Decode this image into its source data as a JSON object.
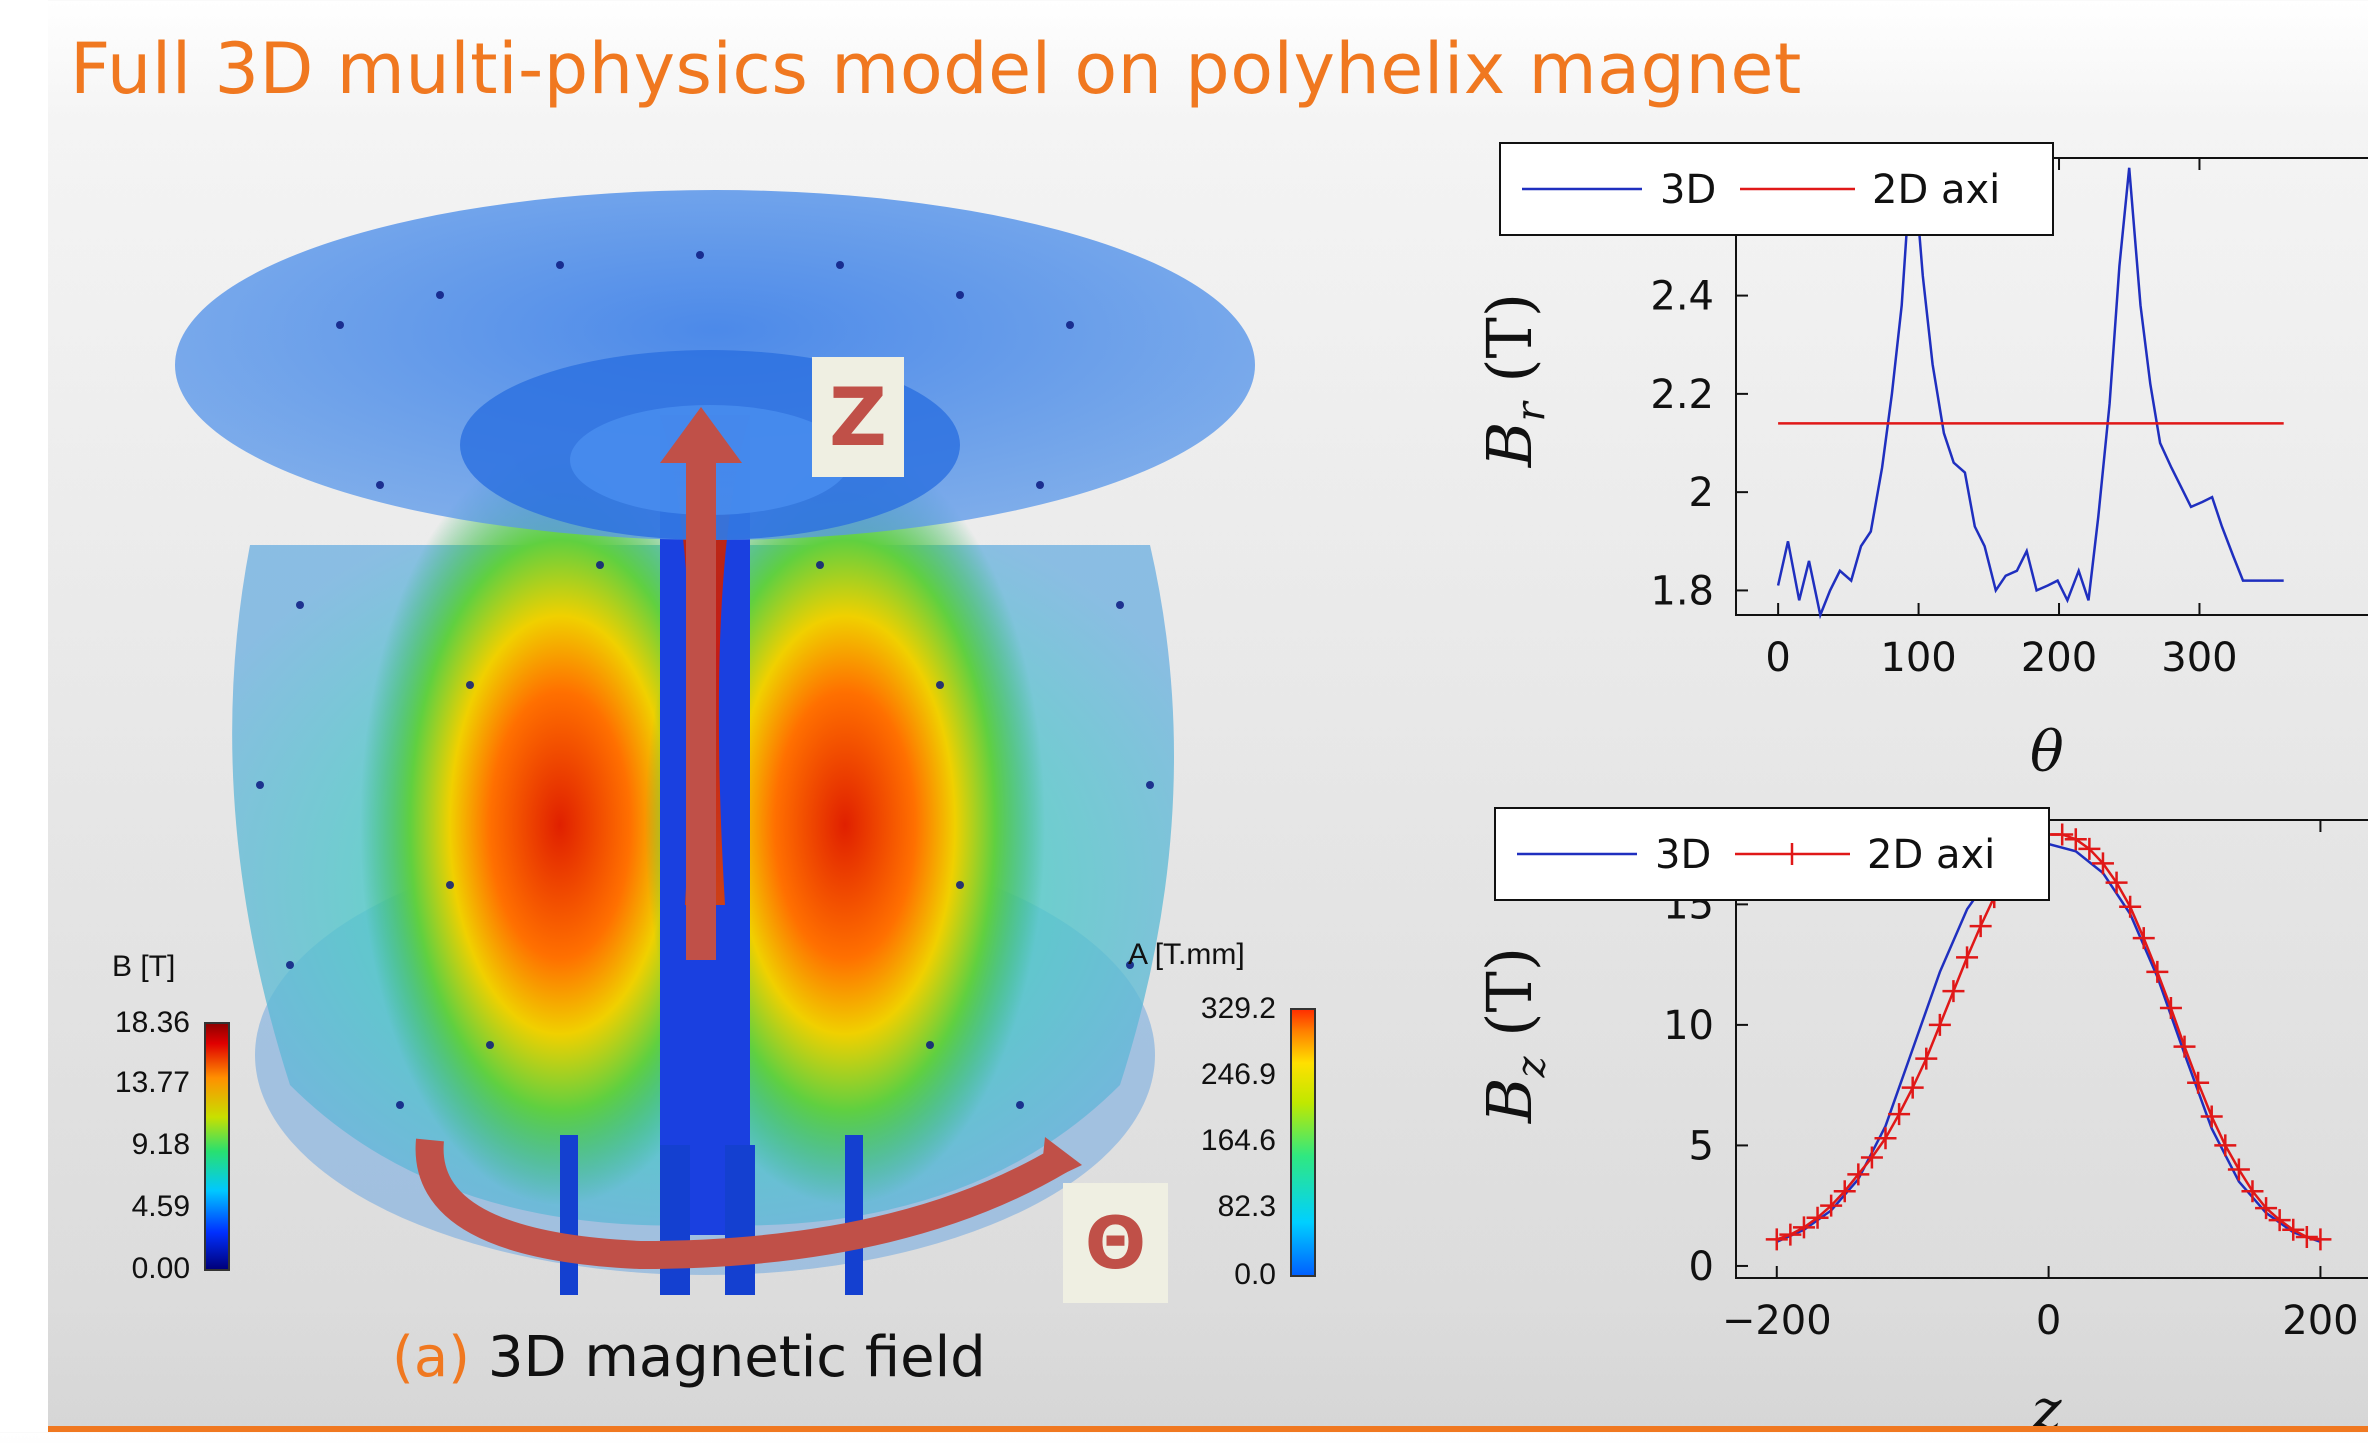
{
  "slide": {
    "title": "Full 3D multi-physics model on polyhelix magnet",
    "caption_tag": "(a)",
    "caption_text": "3D magnetic field"
  },
  "figure": {
    "colorbar_b": {
      "title": "B [T]",
      "ticks": [
        "18.36",
        "13.77",
        "9.18",
        "4.59",
        "0.00"
      ]
    },
    "colorbar_a": {
      "title": "A [T.mm]",
      "ticks": [
        "329.2",
        "246.9",
        "164.6",
        "82.3",
        "0.0"
      ]
    },
    "label_z": "Z",
    "label_theta": "Θ",
    "accent_color": "#c05048"
  },
  "chart_data": [
    {
      "type": "line",
      "xlabel": "θ",
      "ylabel": "B_r (T)",
      "ylabel_base": "B",
      "ylabel_sub": "r",
      "ylabel_unit": "(T)",
      "xlim": [
        -30,
        420
      ],
      "ylim": [
        1.75,
        2.68
      ],
      "xticks": [
        0,
        100,
        200,
        300
      ],
      "yticks": [
        1.8,
        2.0,
        2.2,
        2.4
      ],
      "ytick_labels": [
        "1.8",
        "2",
        "2.2",
        "2.4"
      ],
      "legend": {
        "position": "top-left",
        "entries": [
          "3D",
          "2D axi"
        ]
      },
      "series": [
        {
          "name": "3D",
          "color": "#1f2fbf",
          "marker": "none",
          "x": [
            0,
            7,
            15,
            22,
            30,
            37,
            44,
            52,
            59,
            66,
            74,
            81,
            88,
            92,
            95,
            99,
            103,
            110,
            118,
            125,
            133,
            140,
            147,
            155,
            162,
            170,
            177,
            184,
            192,
            199,
            206,
            214,
            221,
            228,
            236,
            243,
            250,
            258,
            265,
            272,
            280,
            287,
            294,
            302,
            309,
            316,
            324,
            331,
            338,
            345,
            352,
            360
          ],
          "y": [
            1.81,
            1.9,
            1.78,
            1.86,
            1.75,
            1.8,
            1.84,
            1.82,
            1.89,
            1.92,
            2.05,
            2.2,
            2.38,
            2.55,
            2.62,
            2.58,
            2.44,
            2.26,
            2.12,
            2.06,
            2.04,
            1.93,
            1.89,
            1.8,
            1.83,
            1.84,
            1.88,
            1.8,
            1.81,
            1.82,
            1.78,
            1.84,
            1.78,
            1.95,
            2.18,
            2.46,
            2.66,
            2.38,
            2.22,
            2.1,
            2.05,
            2.01,
            1.97,
            1.98,
            1.99,
            1.93,
            1.87,
            1.82,
            1.82,
            1.82,
            1.82,
            1.82
          ]
        },
        {
          "name": "2D axi",
          "color": "#e01818",
          "marker": "none",
          "x": [
            0,
            360
          ],
          "y": [
            2.14,
            2.14
          ]
        }
      ]
    },
    {
      "type": "line",
      "xlabel": "z",
      "ylabel": "B_z (T)",
      "ylabel_base": "B",
      "ylabel_sub": "z",
      "ylabel_unit": "(T)",
      "xlim": [
        -230,
        235
      ],
      "ylim": [
        -0.5,
        18.5
      ],
      "xticks": [
        -200,
        0,
        200
      ],
      "xtick_labels": [
        "−200",
        "0",
        "200"
      ],
      "yticks": [
        0,
        5,
        10,
        15
      ],
      "ytick_labels": [
        "0",
        "5",
        "10",
        "15"
      ],
      "legend": {
        "position": "top-left",
        "entries": [
          "3D",
          "2D axi"
        ]
      },
      "series": [
        {
          "name": "3D",
          "color": "#1f2fbf",
          "marker": "none",
          "x": [
            -200,
            -180,
            -160,
            -140,
            -120,
            -100,
            -80,
            -60,
            -40,
            -20,
            0,
            20,
            40,
            60,
            80,
            100,
            120,
            140,
            160,
            180,
            200
          ],
          "y": [
            1.0,
            1.5,
            2.3,
            3.6,
            5.8,
            9.0,
            12.2,
            14.8,
            16.4,
            17.2,
            17.5,
            17.2,
            16.3,
            14.6,
            12.0,
            8.8,
            5.7,
            3.5,
            2.2,
            1.4,
            1.0
          ]
        },
        {
          "name": "2D axi",
          "color": "#e01818",
          "marker": "plus",
          "x": [
            -200,
            -190,
            -180,
            -170,
            -160,
            -150,
            -140,
            -130,
            -120,
            -110,
            -100,
            -90,
            -80,
            -70,
            -60,
            -50,
            -40,
            -30,
            -20,
            -10,
            0,
            10,
            20,
            30,
            40,
            50,
            60,
            70,
            80,
            90,
            100,
            110,
            120,
            130,
            140,
            150,
            160,
            170,
            180,
            190,
            200
          ],
          "y": [
            1.1,
            1.3,
            1.6,
            2.0,
            2.5,
            3.1,
            3.8,
            4.5,
            5.3,
            6.3,
            7.4,
            8.6,
            10.0,
            11.4,
            12.8,
            14.1,
            15.3,
            16.3,
            17.1,
            17.6,
            17.9,
            17.9,
            17.7,
            17.3,
            16.7,
            15.9,
            14.9,
            13.6,
            12.2,
            10.7,
            9.1,
            7.6,
            6.2,
            5.0,
            4.0,
            3.1,
            2.4,
            1.9,
            1.5,
            1.2,
            1.1
          ]
        }
      ]
    }
  ]
}
